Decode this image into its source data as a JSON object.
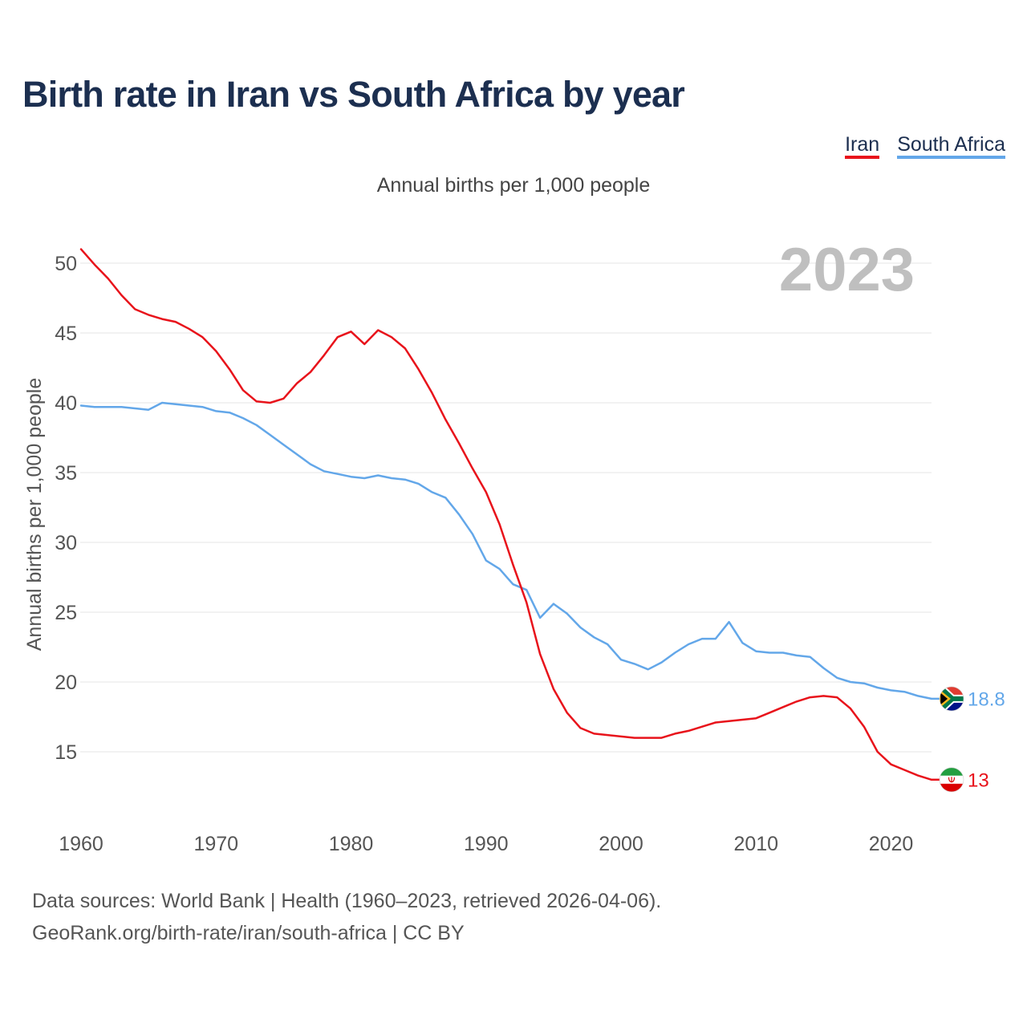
{
  "chart_data": {
    "type": "line",
    "title": "Birth rate in Iran vs South Africa by year",
    "subtitle": "Annual births per 1,000 people",
    "xlabel": "",
    "ylabel": "Annual births per 1,000 people",
    "year_label": "2023",
    "grid": true,
    "legend_position": "top-right",
    "xlim": [
      1960,
      2023
    ],
    "ylim": [
      11,
      52
    ],
    "x_ticks": [
      1960,
      1970,
      1980,
      1990,
      2000,
      2010,
      2020
    ],
    "y_ticks": [
      15,
      20,
      25,
      30,
      35,
      40,
      45,
      50
    ],
    "x": [
      1960,
      1961,
      1962,
      1963,
      1964,
      1965,
      1966,
      1967,
      1968,
      1969,
      1970,
      1971,
      1972,
      1973,
      1974,
      1975,
      1976,
      1977,
      1978,
      1979,
      1980,
      1981,
      1982,
      1983,
      1984,
      1985,
      1986,
      1987,
      1988,
      1989,
      1990,
      1991,
      1992,
      1993,
      1994,
      1995,
      1996,
      1997,
      1998,
      1999,
      2000,
      2001,
      2002,
      2003,
      2004,
      2005,
      2006,
      2007,
      2008,
      2009,
      2010,
      2011,
      2012,
      2013,
      2014,
      2015,
      2016,
      2017,
      2018,
      2019,
      2020,
      2021,
      2022,
      2023
    ],
    "series": [
      {
        "name": "Iran",
        "color": "#e8131b",
        "flag": "iran-flag-icon",
        "end_label": "13",
        "values": [
          51.0,
          49.9,
          48.9,
          47.7,
          46.7,
          46.3,
          46.0,
          45.8,
          45.3,
          44.7,
          43.7,
          42.4,
          40.9,
          40.1,
          40.0,
          40.3,
          41.4,
          42.2,
          43.4,
          44.7,
          45.1,
          44.2,
          45.2,
          44.7,
          43.9,
          42.4,
          40.7,
          38.8,
          37.1,
          35.3,
          33.6,
          31.3,
          28.4,
          25.7,
          22.0,
          19.5,
          17.8,
          16.7,
          16.3,
          16.2,
          16.1,
          16.0,
          16.0,
          16.0,
          16.3,
          16.5,
          16.8,
          17.1,
          17.2,
          17.3,
          17.4,
          17.8,
          18.2,
          18.6,
          18.9,
          19.0,
          18.9,
          18.1,
          16.8,
          15.0,
          14.1,
          13.7,
          13.3,
          13.0
        ]
      },
      {
        "name": "South Africa",
        "color": "#63a7e9",
        "flag": "south-africa-flag-icon",
        "end_label": "18.8",
        "values": [
          39.8,
          39.7,
          39.7,
          39.7,
          39.6,
          39.5,
          40.0,
          39.9,
          39.8,
          39.7,
          39.4,
          39.3,
          38.9,
          38.4,
          37.7,
          37.0,
          36.3,
          35.6,
          35.1,
          34.9,
          34.7,
          34.6,
          34.8,
          34.6,
          34.5,
          34.2,
          33.6,
          33.2,
          32.0,
          30.6,
          28.7,
          28.1,
          27.0,
          26.6,
          24.6,
          25.6,
          24.9,
          23.9,
          23.2,
          22.7,
          21.6,
          21.3,
          20.9,
          21.4,
          22.1,
          22.7,
          23.1,
          23.1,
          24.3,
          22.8,
          22.2,
          22.1,
          22.1,
          21.9,
          21.8,
          21.0,
          20.3,
          20.0,
          19.9,
          19.6,
          19.4,
          19.3,
          19.0,
          18.8
        ]
      }
    ]
  },
  "footer": {
    "source": "Data sources: World Bank | Health (1960–2023, retrieved 2026-04-06).",
    "credit": "GeoRank.org/birth-rate/iran/south-africa | CC BY"
  }
}
